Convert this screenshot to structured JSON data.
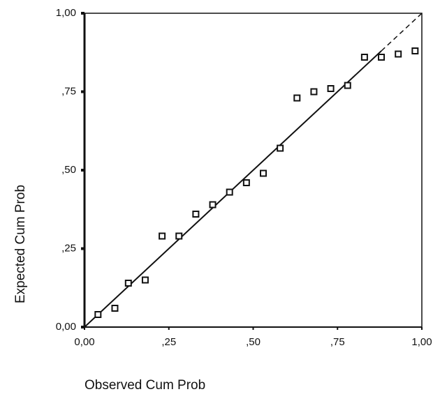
{
  "chart_data": {
    "type": "scatter",
    "xlabel": "Observed Cum Prob",
    "ylabel": "Expected Cum Prob",
    "x": [
      0.04,
      0.09,
      0.13,
      0.18,
      0.23,
      0.28,
      0.33,
      0.38,
      0.43,
      0.48,
      0.53,
      0.58,
      0.63,
      0.68,
      0.73,
      0.78,
      0.83,
      0.88,
      0.93,
      0.98
    ],
    "values": [
      0.04,
      0.06,
      0.14,
      0.15,
      0.29,
      0.29,
      0.36,
      0.39,
      0.43,
      0.46,
      0.49,
      0.57,
      0.73,
      0.75,
      0.76,
      0.77,
      0.86,
      0.86,
      0.87,
      0.88
    ],
    "color": "#111111",
    "xlim": [
      0,
      1
    ],
    "ylim": [
      0,
      1
    ],
    "xticks": [
      {
        "value": 0,
        "label": "0,00"
      },
      {
        "value": 0.25,
        "label": ",25"
      },
      {
        "value": 0.5,
        "label": ",50"
      },
      {
        "value": 0.75,
        "label": ",75"
      },
      {
        "value": 1,
        "label": "1,00"
      }
    ],
    "yticks": [
      {
        "value": 0,
        "label": "0,00"
      },
      {
        "value": 0.25,
        "label": ",25"
      },
      {
        "value": 0.5,
        "label": ",50"
      },
      {
        "value": 0.75,
        "label": ",75"
      },
      {
        "value": 1,
        "label": "1,00"
      }
    ]
  }
}
